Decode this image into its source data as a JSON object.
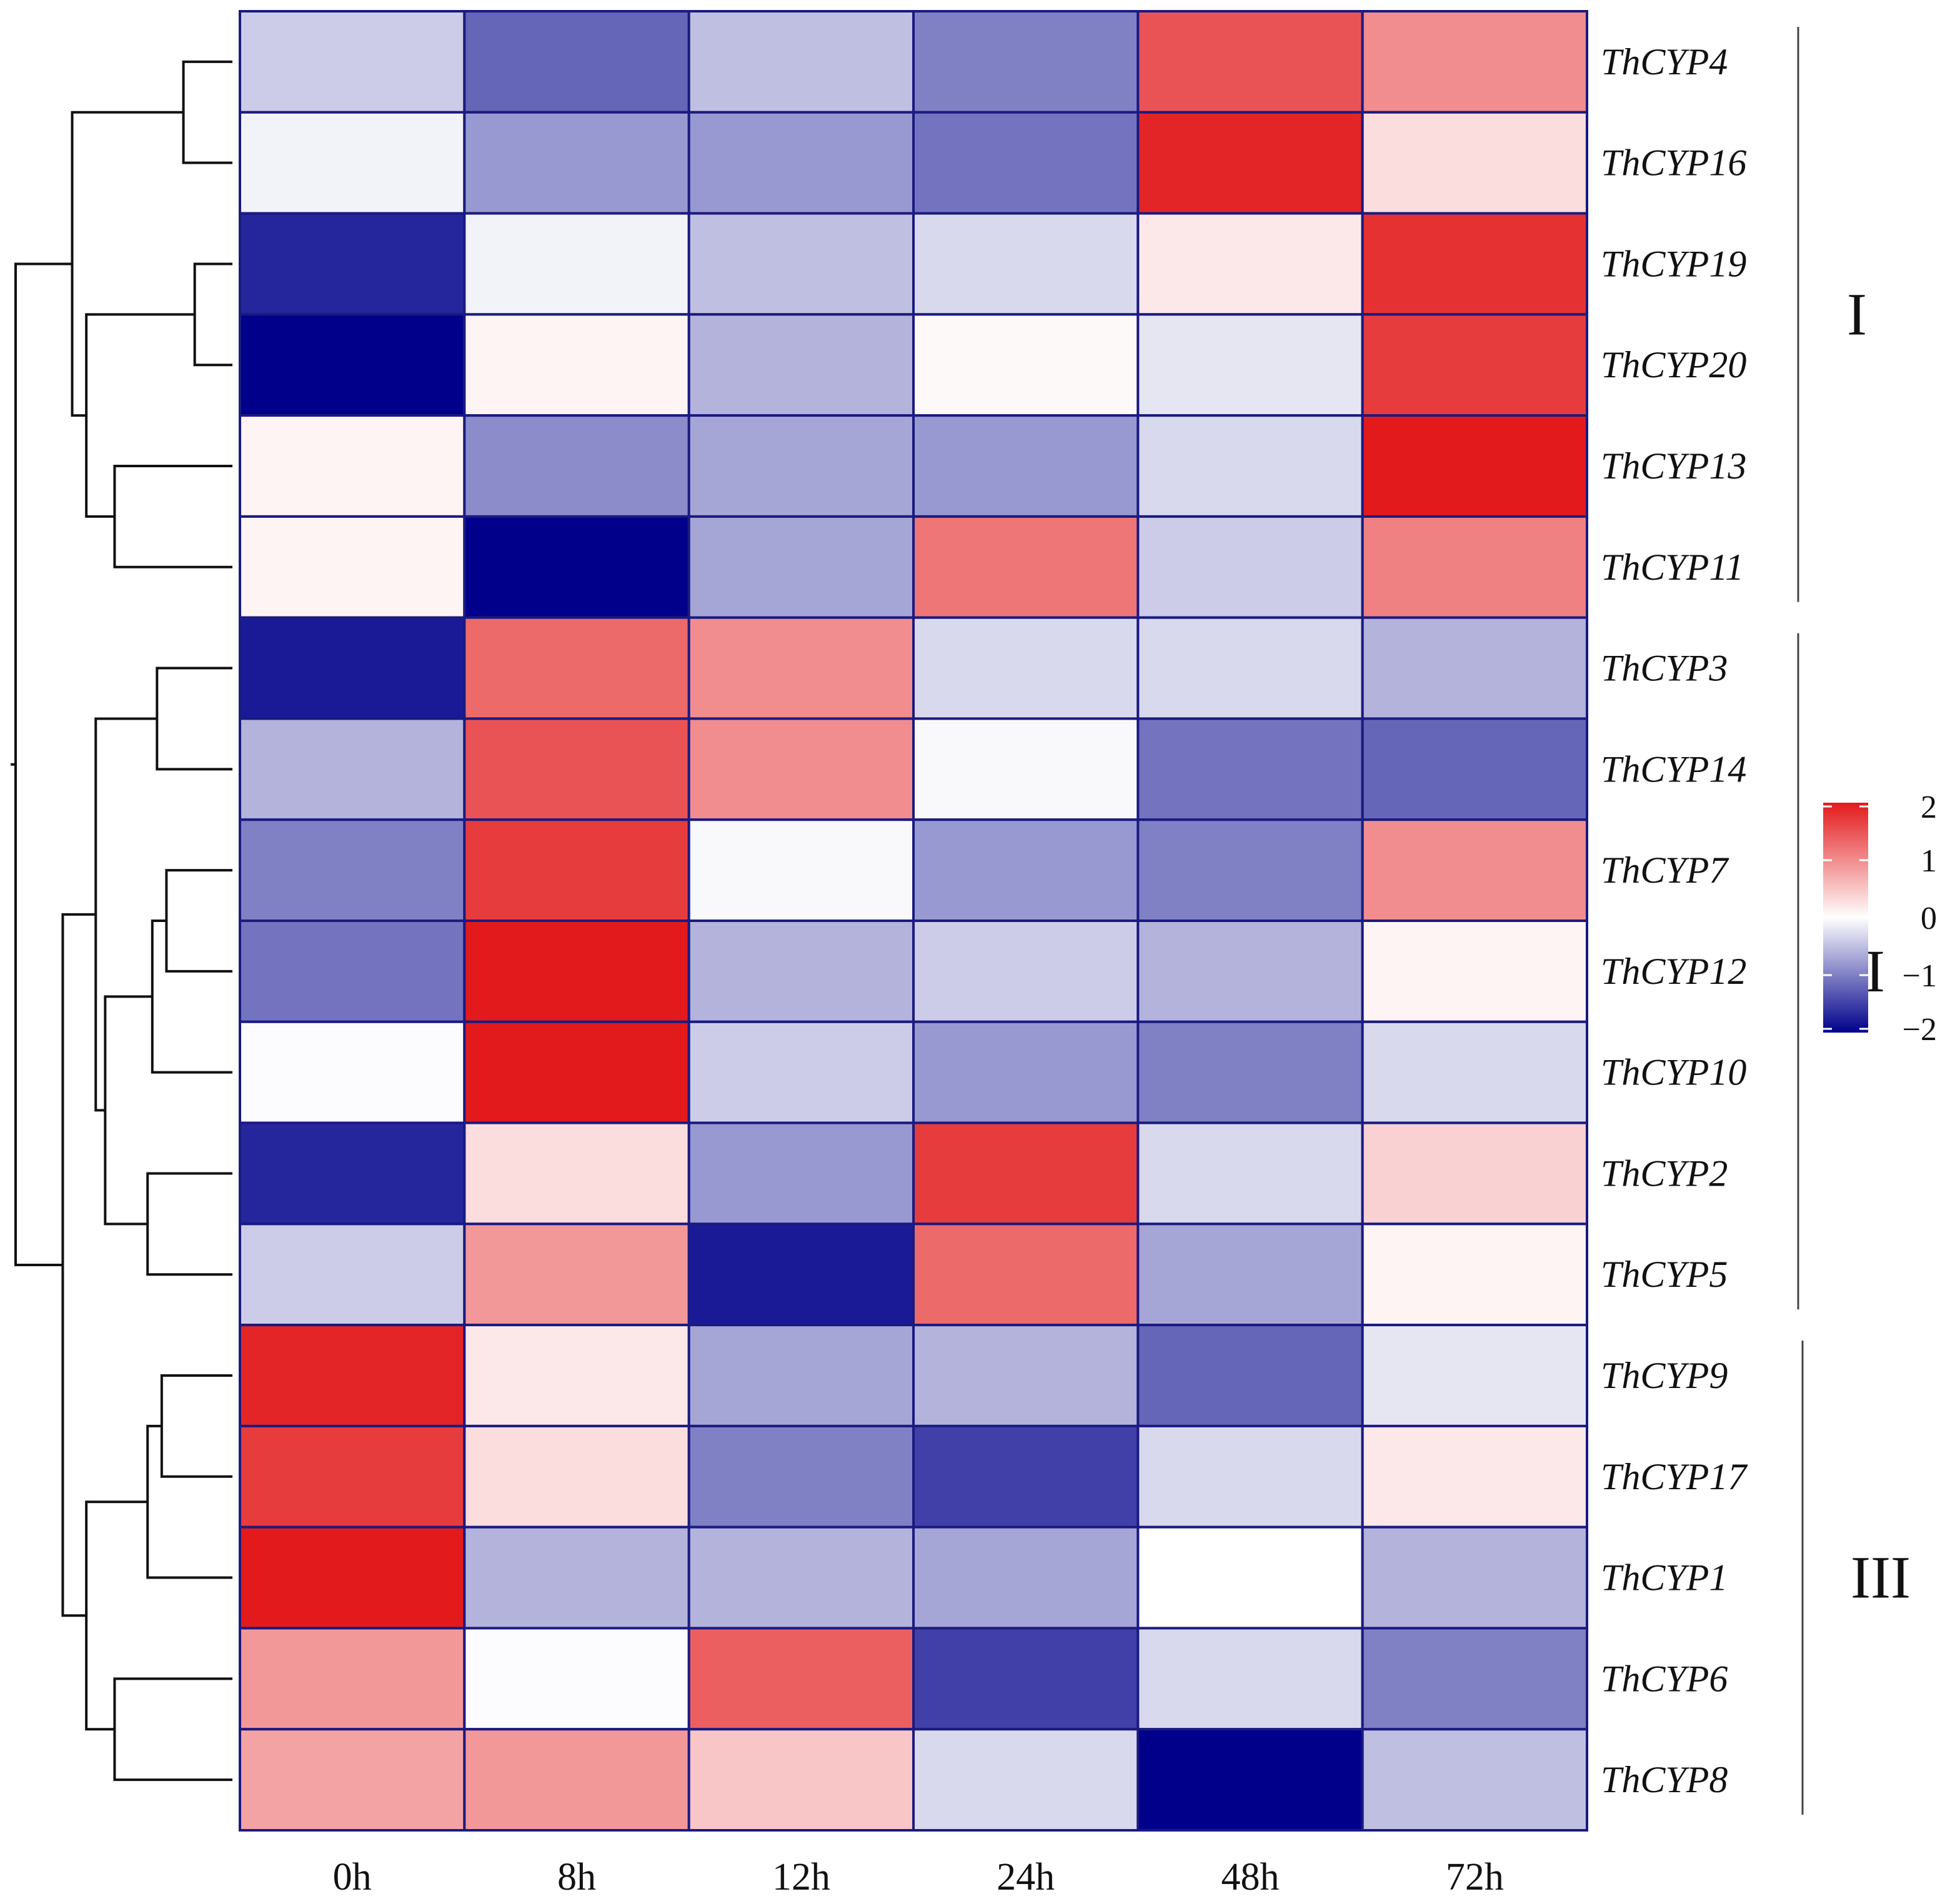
{
  "chart_data": {
    "type": "heatmap",
    "title": "",
    "xlabel": "",
    "ylabel": "",
    "columns": [
      "0h",
      "8h",
      "12h",
      "24h",
      "48h",
      "72h"
    ],
    "rows": [
      "ThCYP4",
      "ThCYP16",
      "ThCYP19",
      "ThCYP20",
      "ThCYP13",
      "ThCYP11",
      "ThCYP3",
      "ThCYP14",
      "ThCYP7",
      "ThCYP12",
      "ThCYP10",
      "ThCYP2",
      "ThCYP5",
      "ThCYP9",
      "ThCYP17",
      "ThCYP1",
      "ThCYP6",
      "ThCYP8"
    ],
    "values": [
      [
        -0.4,
        -1.2,
        -0.5,
        -1.0,
        1.5,
        1.0
      ],
      [
        -0.1,
        -0.8,
        -0.8,
        -1.1,
        1.9,
        0.3
      ],
      [
        -1.7,
        -0.1,
        -0.5,
        -0.3,
        0.2,
        1.8
      ],
      [
        -2.0,
        0.1,
        -0.6,
        0.05,
        -0.2,
        1.7
      ],
      [
        0.1,
        -0.9,
        -0.7,
        -0.8,
        -0.3,
        2.2
      ],
      [
        0.1,
        -2.0,
        -0.7,
        1.2,
        -0.4,
        1.1
      ],
      [
        -1.8,
        1.3,
        1.0,
        -0.3,
        -0.3,
        -0.6
      ],
      [
        -0.6,
        1.5,
        1.0,
        -0.05,
        -1.1,
        -1.2
      ],
      [
        -1.0,
        1.7,
        -0.05,
        -0.8,
        -1.0,
        1.0
      ],
      [
        -1.1,
        2.2,
        -0.6,
        -0.4,
        -0.6,
        0.1
      ],
      [
        -0.02,
        2.2,
        -0.4,
        -0.8,
        -1.0,
        -0.3
      ],
      [
        -1.7,
        0.3,
        -0.8,
        1.7,
        -0.3,
        0.4
      ],
      [
        -0.4,
        0.9,
        -1.8,
        1.3,
        -0.7,
        0.1
      ],
      [
        1.9,
        0.2,
        -0.7,
        -0.6,
        -1.2,
        -0.2
      ],
      [
        1.7,
        0.3,
        -1.0,
        -1.5,
        -0.3,
        0.2
      ],
      [
        2.3,
        -0.6,
        -0.6,
        -0.7,
        0.0,
        -0.6
      ],
      [
        0.9,
        -0.02,
        1.4,
        -1.5,
        -0.3,
        -1.0
      ],
      [
        0.8,
        0.9,
        0.5,
        -0.3,
        -2.3,
        -0.5
      ]
    ],
    "color_scale": {
      "min": -2,
      "max": 2,
      "low": "#00008b",
      "mid": "#ffffff",
      "high": "#e31a1c",
      "ticks": [
        2,
        1,
        0,
        -1,
        -2
      ]
    },
    "legend_tick_labels": [
      "2",
      "1",
      "0",
      "−1",
      "−2"
    ],
    "clusters": [
      {
        "label": "I",
        "rows": [
          "ThCYP4",
          "ThCYP11"
        ]
      },
      {
        "label": "II",
        "rows": [
          "ThCYP3",
          "ThCYP5"
        ]
      },
      {
        "label": "III",
        "rows": [
          "ThCYP9",
          "ThCYP8"
        ]
      }
    ],
    "cell_border_color": "#1a1a80",
    "dendrogram": {
      "leaf_order": [
        "ThCYP4",
        "ThCYP16",
        "ThCYP19",
        "ThCYP20",
        "ThCYP13",
        "ThCYP11",
        "ThCYP3",
        "ThCYP14",
        "ThCYP7",
        "ThCYP12",
        "ThCYP10",
        "ThCYP2",
        "ThCYP5",
        "ThCYP9",
        "ThCYP17",
        "ThCYP1",
        "ThCYP6",
        "ThCYP8"
      ],
      "merges": [
        {
          "a": "ThCYP4",
          "b": "ThCYP16",
          "height": 0.52
        },
        {
          "a": "ThCYP19",
          "b": "ThCYP20",
          "height": 0.4
        },
        {
          "a": "ThCYP13",
          "b": "ThCYP11",
          "height": 1.25
        },
        {
          "a": "n1",
          "b": "n2",
          "height": 1.55
        },
        {
          "a": "n0",
          "b": "n3",
          "height": 1.7
        },
        {
          "a": "ThCYP3",
          "b": "ThCYP14",
          "height": 0.8
        },
        {
          "a": "ThCYP7",
          "b": "ThCYP12",
          "height": 0.7
        },
        {
          "a": "n6",
          "b": "ThCYP10",
          "height": 0.85
        },
        {
          "a": "ThCYP2",
          "b": "ThCYP5",
          "height": 0.9
        },
        {
          "a": "n7",
          "b": "n8",
          "height": 1.35
        },
        {
          "a": "n5",
          "b": "n9",
          "height": 1.45
        },
        {
          "a": "ThCYP9",
          "b": "ThCYP17",
          "height": 0.75
        },
        {
          "a": "n11",
          "b": "ThCYP1",
          "height": 0.9
        },
        {
          "a": "ThCYP6",
          "b": "ThCYP8",
          "height": 1.25
        },
        {
          "a": "n12",
          "b": "n13",
          "height": 1.55
        },
        {
          "a": "n10",
          "b": "n14",
          "height": 1.8
        },
        {
          "a": "n4",
          "b": "n15",
          "height": 2.3
        },
        {
          "a": "n16",
          "b": "n16",
          "height": 2.3
        }
      ],
      "max_height": 2.3
    }
  }
}
